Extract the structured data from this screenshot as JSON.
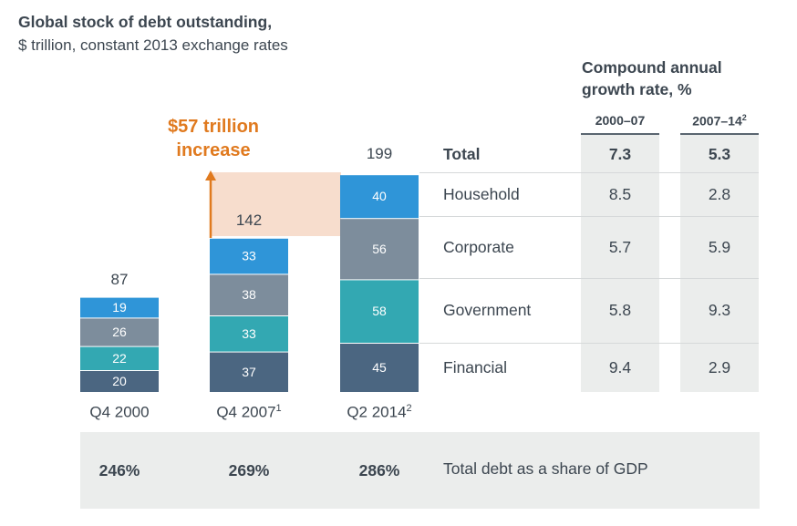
{
  "header": {
    "title": "Global stock of debt outstanding,",
    "subtitle": "$ trillion, constant 2013 exchange rates"
  },
  "cagr": {
    "header_line1": "Compound annual",
    "header_line2": "growth rate, %",
    "period1": "2000–07",
    "period2_main": "2007–14",
    "period2_sup": "2",
    "rows": [
      {
        "label": "Total",
        "p1": "7.3",
        "p2": "5.3"
      },
      {
        "label": "Household",
        "p1": "8.5",
        "p2": "2.8"
      },
      {
        "label": "Corporate",
        "p1": "5.7",
        "p2": "5.9"
      },
      {
        "label": "Government",
        "p1": "5.8",
        "p2": "9.3"
      },
      {
        "label": "Financial",
        "p1": "9.4",
        "p2": "2.9"
      }
    ]
  },
  "annotation": {
    "line1": "$57 trillion",
    "line2": "increase"
  },
  "gdp_share": {
    "values": [
      "246%",
      "269%",
      "286%"
    ],
    "label": "Total debt as a share of GDP"
  },
  "colors": {
    "household": "#2f95d8",
    "corporate": "#7d8d9c",
    "government": "#33a8b2",
    "financial": "#4b6681",
    "annotation": "#e07a1f",
    "increase_band": "#f7ddcd"
  },
  "chart_data": {
    "type": "bar",
    "stacked": true,
    "categories": [
      "Q4 2000",
      "Q4 2007",
      "Q2 2014"
    ],
    "category_sups": [
      "",
      "1",
      "2"
    ],
    "totals": [
      87,
      142,
      199
    ],
    "series": [
      {
        "name": "Financial",
        "values": [
          20,
          37,
          45
        ]
      },
      {
        "name": "Government",
        "values": [
          22,
          33,
          58
        ]
      },
      {
        "name": "Corporate",
        "values": [
          26,
          38,
          56
        ]
      },
      {
        "name": "Household",
        "values": [
          19,
          33,
          40
        ]
      }
    ]
  }
}
